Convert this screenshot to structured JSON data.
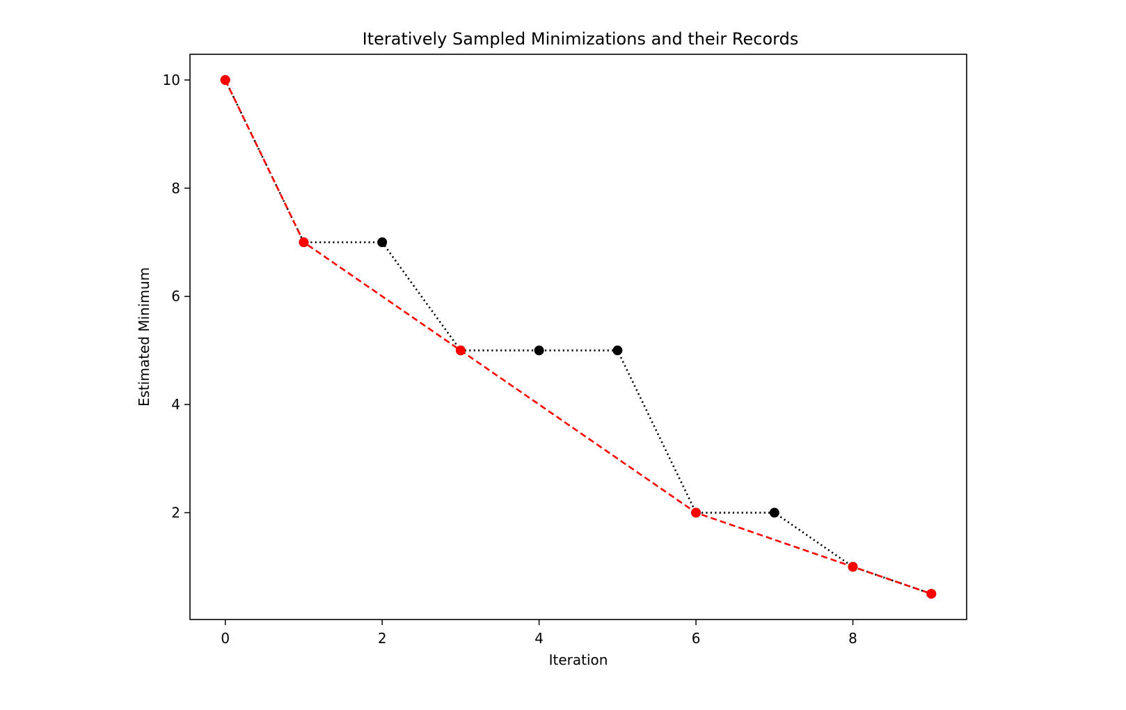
{
  "chart_data": {
    "type": "line",
    "title": "Iteratively Sampled Minimizations and their Records",
    "xlabel": "Iteration",
    "ylabel": "Estimated Minimum",
    "xlim": [
      -0.45,
      9.45
    ],
    "ylim": [
      0.025,
      10.475
    ],
    "xticks": [
      0,
      2,
      4,
      6,
      8
    ],
    "yticks": [
      2,
      4,
      6,
      8,
      10
    ],
    "grid": false,
    "series": [
      {
        "style": "dotted",
        "color": "#000000",
        "x": [
          0,
          1,
          2,
          3,
          4,
          5,
          6,
          7,
          8,
          9
        ],
        "values": [
          10,
          7,
          7,
          5,
          5,
          5,
          2,
          2,
          1,
          0.5
        ]
      },
      {
        "style": "dashed",
        "color": "#ff0000",
        "x": [
          0,
          1,
          3,
          6,
          8,
          9
        ],
        "values": [
          10,
          7,
          5,
          2,
          1,
          0.5
        ]
      }
    ]
  }
}
